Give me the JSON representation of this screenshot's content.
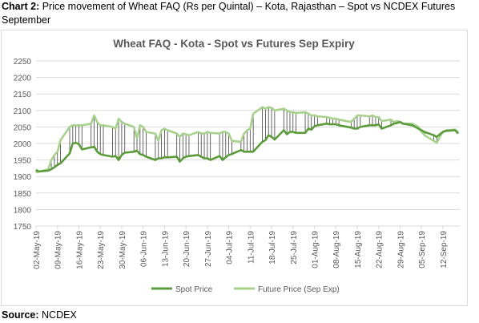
{
  "caption": {
    "label": "Chart 2:",
    "text": "Price movement of Wheat FAQ (Rs per Quintal) – Kota, Rajasthan – Spot vs NCDEX Futures September"
  },
  "source": {
    "label": "Source:",
    "text": "NCDEX"
  },
  "colors": {
    "spot": "#5b9b3a",
    "future": "#a9d18e",
    "grid": "#d9d9d9",
    "droplines": "#404040"
  },
  "chart_data": {
    "type": "line",
    "title": "Wheat FAQ - Kota - Spot vs Futures Sep Expiry",
    "xlabel": "",
    "ylabel": "",
    "ylim": [
      1750,
      2250
    ],
    "yticks": [
      1750,
      1800,
      1850,
      1900,
      1950,
      2000,
      2050,
      2100,
      2150,
      2200,
      2250
    ],
    "x_tick_labels": [
      "02-May-19",
      "09-May-19",
      "16-May-19",
      "23-May-19",
      "30-May-19",
      "06-Jun-19",
      "13-Jun-19",
      "20-Jun-19",
      "27-Jun-19",
      "04-Jul-19",
      "11-Jul-19",
      "18-Jul-19",
      "25-Jul-19",
      "01-Aug-19",
      "08-Aug-19",
      "15-Aug-19",
      "22-Aug-19",
      "29-Aug-19",
      "05-Sep-19",
      "12-Sep-19"
    ],
    "x_start": "2019-05-02",
    "x_end": "2019-09-17",
    "grid": true,
    "drop_lines": true,
    "legend_position": "bottom",
    "series": [
      {
        "name": "Spot Price",
        "points": [
          [
            "2019-05-02",
            1920
          ],
          [
            "2019-05-03",
            1915
          ],
          [
            "2019-05-06",
            1918
          ],
          [
            "2019-05-07",
            1922
          ],
          [
            "2019-05-08",
            1928
          ],
          [
            "2019-05-09",
            1935
          ],
          [
            "2019-05-10",
            1940
          ],
          [
            "2019-05-13",
            1970
          ],
          [
            "2019-05-14",
            2000
          ],
          [
            "2019-05-15",
            2002
          ],
          [
            "2019-05-16",
            1998
          ],
          [
            "2019-05-17",
            1982
          ],
          [
            "2019-05-20",
            1988
          ],
          [
            "2019-05-21",
            1990
          ],
          [
            "2019-05-22",
            1975
          ],
          [
            "2019-05-23",
            1968
          ],
          [
            "2019-05-24",
            1965
          ],
          [
            "2019-05-27",
            1960
          ],
          [
            "2019-05-28",
            1962
          ],
          [
            "2019-05-29",
            1950
          ],
          [
            "2019-05-30",
            1965
          ],
          [
            "2019-05-31",
            1972
          ],
          [
            "2019-06-03",
            1975
          ],
          [
            "2019-06-04",
            1978
          ],
          [
            "2019-06-05",
            1968
          ],
          [
            "2019-06-06",
            1965
          ],
          [
            "2019-06-07",
            1960
          ],
          [
            "2019-06-10",
            1950
          ],
          [
            "2019-06-11",
            1955
          ],
          [
            "2019-06-12",
            1955
          ],
          [
            "2019-06-13",
            1958
          ],
          [
            "2019-06-14",
            1958
          ],
          [
            "2019-06-17",
            1960
          ],
          [
            "2019-06-18",
            1945
          ],
          [
            "2019-06-19",
            1955
          ],
          [
            "2019-06-20",
            1960
          ],
          [
            "2019-06-21",
            1962
          ],
          [
            "2019-06-24",
            1965
          ],
          [
            "2019-06-25",
            1960
          ],
          [
            "2019-06-26",
            1955
          ],
          [
            "2019-06-27",
            1955
          ],
          [
            "2019-06-28",
            1950
          ],
          [
            "2019-07-01",
            1962
          ],
          [
            "2019-07-02",
            1950
          ],
          [
            "2019-07-03",
            1958
          ],
          [
            "2019-07-04",
            1965
          ],
          [
            "2019-07-05",
            1968
          ],
          [
            "2019-07-08",
            1980
          ],
          [
            "2019-07-09",
            1975
          ],
          [
            "2019-07-10",
            1975
          ],
          [
            "2019-07-11",
            1975
          ],
          [
            "2019-07-12",
            1975
          ],
          [
            "2019-07-15",
            2005
          ],
          [
            "2019-07-16",
            2010
          ],
          [
            "2019-07-17",
            2025
          ],
          [
            "2019-07-18",
            2020
          ],
          [
            "2019-07-19",
            2012
          ],
          [
            "2019-07-22",
            2040
          ],
          [
            "2019-07-23",
            2028
          ],
          [
            "2019-07-24",
            2035
          ],
          [
            "2019-07-25",
            2035
          ],
          [
            "2019-07-26",
            2032
          ],
          [
            "2019-07-29",
            2032
          ],
          [
            "2019-07-30",
            2045
          ],
          [
            "2019-07-31",
            2042
          ],
          [
            "2019-08-01",
            2052
          ],
          [
            "2019-08-02",
            2055
          ],
          [
            "2019-08-05",
            2060
          ],
          [
            "2019-08-06",
            2058
          ],
          [
            "2019-08-07",
            2058
          ],
          [
            "2019-08-08",
            2058
          ],
          [
            "2019-08-09",
            2055
          ],
          [
            "2019-08-13",
            2048
          ],
          [
            "2019-08-14",
            2045
          ],
          [
            "2019-08-15",
            2045
          ],
          [
            "2019-08-16",
            2050
          ],
          [
            "2019-08-19",
            2055
          ],
          [
            "2019-08-20",
            2055
          ],
          [
            "2019-08-21",
            2055
          ],
          [
            "2019-08-22",
            2058
          ],
          [
            "2019-08-23",
            2045
          ],
          [
            "2019-08-26",
            2055
          ],
          [
            "2019-08-27",
            2060
          ],
          [
            "2019-08-28",
            2062
          ],
          [
            "2019-08-29",
            2065
          ],
          [
            "2019-08-30",
            2060
          ],
          [
            "2019-09-02",
            2055
          ],
          [
            "2019-09-03",
            2050
          ],
          [
            "2019-09-04",
            2045
          ],
          [
            "2019-09-05",
            2040
          ],
          [
            "2019-09-06",
            2035
          ],
          [
            "2019-09-09",
            2025
          ],
          [
            "2019-09-10",
            2020
          ],
          [
            "2019-09-11",
            2028
          ],
          [
            "2019-09-12",
            2035
          ],
          [
            "2019-09-13",
            2038
          ],
          [
            "2019-09-16",
            2040
          ],
          [
            "2019-09-17",
            2030
          ]
        ]
      },
      {
        "name": "Future Price (Sep Exp)",
        "points": [
          [
            "2019-05-02",
            1912
          ],
          [
            "2019-05-03",
            1915
          ],
          [
            "2019-05-06",
            1922
          ],
          [
            "2019-05-07",
            1950
          ],
          [
            "2019-05-08",
            1965
          ],
          [
            "2019-05-09",
            1975
          ],
          [
            "2019-05-10",
            2010
          ],
          [
            "2019-05-13",
            2050
          ],
          [
            "2019-05-14",
            2055
          ],
          [
            "2019-05-15",
            2055
          ],
          [
            "2019-05-16",
            2055
          ],
          [
            "2019-05-17",
            2055
          ],
          [
            "2019-05-20",
            2060
          ],
          [
            "2019-05-21",
            2085
          ],
          [
            "2019-05-22",
            2065
          ],
          [
            "2019-05-23",
            2055
          ],
          [
            "2019-05-24",
            2055
          ],
          [
            "2019-05-27",
            2050
          ],
          [
            "2019-05-28",
            2045
          ],
          [
            "2019-05-29",
            2075
          ],
          [
            "2019-05-30",
            2065
          ],
          [
            "2019-05-31",
            2060
          ],
          [
            "2019-06-03",
            2050
          ],
          [
            "2019-06-04",
            2015
          ],
          [
            "2019-06-05",
            2055
          ],
          [
            "2019-06-06",
            2050
          ],
          [
            "2019-06-07",
            2035
          ],
          [
            "2019-06-10",
            2030
          ],
          [
            "2019-06-11",
            2008
          ],
          [
            "2019-06-12",
            2040
          ],
          [
            "2019-06-13",
            2045
          ],
          [
            "2019-06-14",
            2040
          ],
          [
            "2019-06-17",
            2030
          ],
          [
            "2019-06-18",
            2020
          ],
          [
            "2019-06-19",
            2030
          ],
          [
            "2019-06-20",
            2028
          ],
          [
            "2019-06-21",
            2025
          ],
          [
            "2019-06-24",
            2035
          ],
          [
            "2019-06-25",
            2030
          ],
          [
            "2019-06-26",
            2030
          ],
          [
            "2019-06-27",
            2035
          ],
          [
            "2019-06-28",
            2032
          ],
          [
            "2019-07-01",
            2030
          ],
          [
            "2019-07-02",
            2035
          ],
          [
            "2019-07-03",
            2035
          ],
          [
            "2019-07-04",
            2030
          ],
          [
            "2019-07-05",
            2008
          ],
          [
            "2019-07-08",
            2005
          ],
          [
            "2019-07-09",
            2030
          ],
          [
            "2019-07-10",
            2040
          ],
          [
            "2019-07-11",
            2045
          ],
          [
            "2019-07-12",
            2090
          ],
          [
            "2019-07-15",
            2110
          ],
          [
            "2019-07-16",
            2105
          ],
          [
            "2019-07-17",
            2110
          ],
          [
            "2019-07-18",
            2108
          ],
          [
            "2019-07-19",
            2100
          ],
          [
            "2019-07-22",
            2105
          ],
          [
            "2019-07-23",
            2100
          ],
          [
            "2019-07-24",
            2095
          ],
          [
            "2019-07-25",
            2095
          ],
          [
            "2019-07-26",
            2092
          ],
          [
            "2019-07-29",
            2095
          ],
          [
            "2019-07-30",
            2090
          ],
          [
            "2019-07-31",
            2085
          ],
          [
            "2019-08-01",
            2085
          ],
          [
            "2019-08-02",
            2082
          ],
          [
            "2019-08-05",
            2080
          ],
          [
            "2019-08-06",
            2078
          ],
          [
            "2019-08-07",
            2075
          ],
          [
            "2019-08-08",
            2075
          ],
          [
            "2019-08-09",
            2072
          ],
          [
            "2019-08-13",
            2065
          ],
          [
            "2019-08-14",
            2075
          ],
          [
            "2019-08-15",
            2085
          ],
          [
            "2019-08-16",
            2085
          ],
          [
            "2019-08-19",
            2082
          ],
          [
            "2019-08-20",
            2085
          ],
          [
            "2019-08-21",
            2080
          ],
          [
            "2019-08-22",
            2080
          ],
          [
            "2019-08-23",
            2068
          ],
          [
            "2019-08-26",
            2072
          ],
          [
            "2019-08-27",
            2065
          ],
          [
            "2019-08-28",
            2068
          ],
          [
            "2019-08-29",
            2065
          ],
          [
            "2019-08-30",
            2060
          ],
          [
            "2019-09-02",
            2060
          ],
          [
            "2019-09-03",
            2055
          ],
          [
            "2019-09-04",
            2050
          ],
          [
            "2019-09-05",
            2035
          ],
          [
            "2019-09-06",
            2025
          ],
          [
            "2019-09-09",
            2008
          ],
          [
            "2019-09-10",
            2002
          ],
          [
            "2019-09-11",
            2020
          ],
          [
            "2019-09-12",
            2035
          ],
          [
            "2019-09-13",
            2040
          ],
          [
            "2019-09-16",
            2042
          ],
          [
            "2019-09-17",
            2035
          ]
        ]
      }
    ]
  }
}
